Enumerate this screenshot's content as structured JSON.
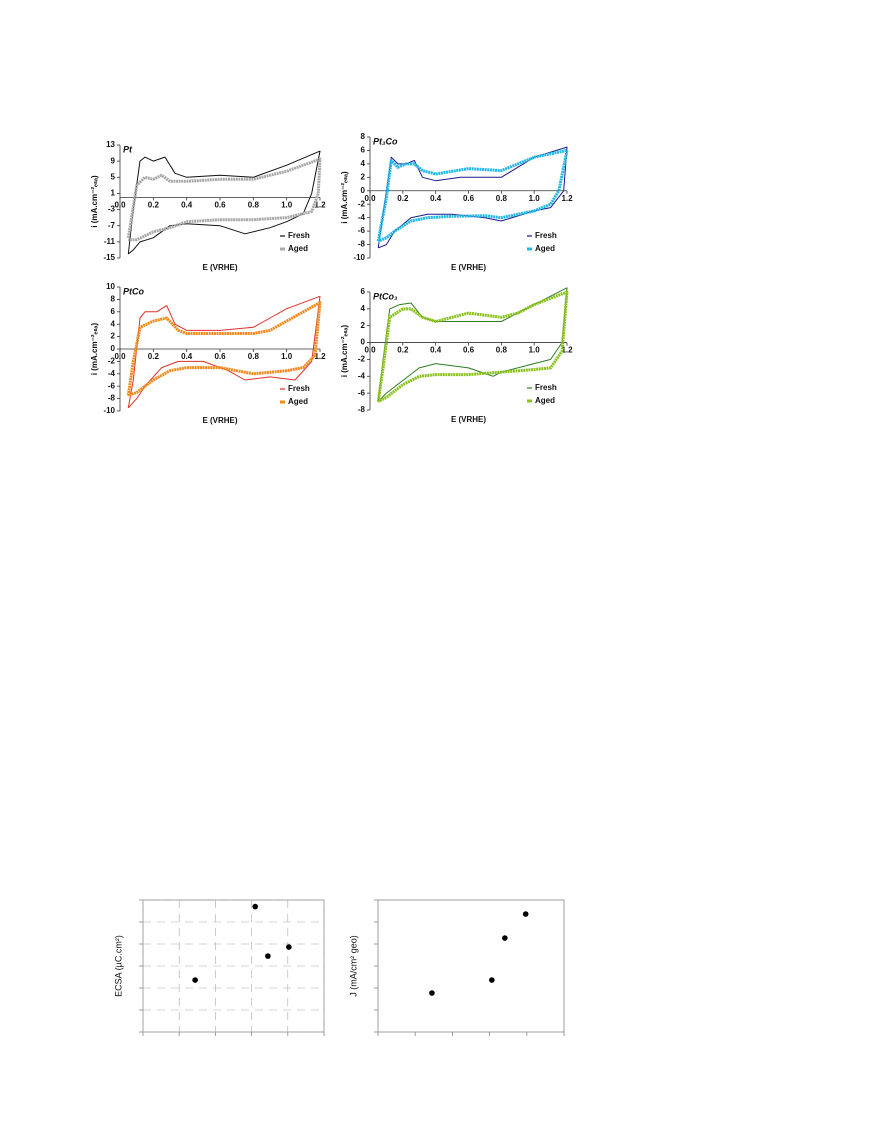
{
  "chart_data": [
    {
      "type": "line",
      "title": "Pt",
      "xlabel": "E (VRHE)",
      "ylabel": "i (mA.cm⁻²ₑₛₐ)",
      "xlim": [
        0,
        1.2
      ],
      "ylim": [
        -15,
        13
      ],
      "xticks": [
        {
          "value": 0,
          "label": "0.0"
        },
        0.2,
        0.4,
        0.6,
        0.8,
        {
          "value": 1,
          "label": "1.0"
        },
        1.2
      ],
      "yticks": [
        13,
        9,
        5,
        1,
        -3,
        -7,
        -11,
        -15
      ],
      "legend": "lower right",
      "series": [
        {
          "name": "Fresh",
          "color": "#111111",
          "x": [
            0.05,
            0.08,
            0.12,
            0.15,
            0.2,
            0.27,
            0.33,
            0.4,
            0.6,
            0.8,
            1.0,
            1.2,
            1.15,
            1.1,
            1.0,
            0.9,
            0.75,
            0.6,
            0.4,
            0.3,
            0.2,
            0.12,
            0.08,
            0.05
          ],
          "values": [
            -14,
            -3,
            9,
            10,
            9,
            10,
            6,
            5,
            5.5,
            5,
            8,
            11.5,
            1,
            -4,
            -6,
            -7.5,
            -9,
            -7,
            -6.5,
            -7,
            -10,
            -11,
            -13,
            -14
          ]
        },
        {
          "name": "Aged",
          "color": "#aaaaaa",
          "x": [
            0.05,
            0.1,
            0.15,
            0.2,
            0.25,
            0.3,
            0.4,
            0.6,
            0.8,
            1.0,
            1.2,
            1.19,
            1.15,
            1.0,
            0.8,
            0.6,
            0.4,
            0.3,
            0.2,
            0.1,
            0.05
          ],
          "values": [
            -10,
            3,
            5,
            4.5,
            5.5,
            4,
            4,
            4.5,
            4.5,
            6.5,
            9.5,
            1,
            -3.5,
            -5,
            -5.5,
            -5.5,
            -6,
            -7.5,
            -8.5,
            -10.5,
            -10.5
          ]
        }
      ]
    },
    {
      "type": "line",
      "title": "Pt₃Co",
      "xlabel": "E (VRHE)",
      "ylabel": "i (mA.cm⁻²ₑₛₐ)",
      "xlim": [
        0,
        1.2
      ],
      "ylim": [
        -10,
        8
      ],
      "xticks": [
        {
          "value": 0,
          "label": "0.0"
        },
        0.2,
        0.4,
        0.6,
        0.8,
        {
          "value": 1,
          "label": "1.0"
        },
        1.2
      ],
      "yticks": [
        8,
        6,
        4,
        2,
        0,
        -2,
        -4,
        -6,
        -8,
        -10
      ],
      "legend": "lower right",
      "series": [
        {
          "name": "Fresh",
          "color": "#1a1a8c",
          "x": [
            0.05,
            0.1,
            0.13,
            0.17,
            0.22,
            0.27,
            0.32,
            0.4,
            0.55,
            0.7,
            0.8,
            0.9,
            1.0,
            1.2,
            1.18,
            1.1,
            1.0,
            0.8,
            0.7,
            0.5,
            0.35,
            0.25,
            0.15,
            0.1,
            0.05
          ],
          "values": [
            -8.5,
            0,
            5,
            4,
            4,
            4.5,
            2,
            1.5,
            2,
            2,
            2,
            3.5,
            5,
            6.5,
            0,
            -2.5,
            -3,
            -4.5,
            -4,
            -3.5,
            -3.5,
            -4,
            -6,
            -8,
            -8.5
          ]
        },
        {
          "name": "Aged",
          "color": "#22b8e8",
          "x": [
            0.05,
            0.1,
            0.13,
            0.17,
            0.22,
            0.27,
            0.32,
            0.4,
            0.6,
            0.8,
            0.9,
            1.0,
            1.2,
            1.15,
            1.1,
            1.0,
            0.8,
            0.7,
            0.5,
            0.35,
            0.25,
            0.15,
            0.1,
            0.05
          ],
          "values": [
            -7.5,
            -1,
            4.5,
            3.5,
            4,
            4,
            3,
            2.5,
            3.3,
            3,
            4,
            5,
            6,
            0,
            -2,
            -3,
            -4,
            -3.7,
            -3.8,
            -4,
            -4.5,
            -6,
            -7,
            -7.5
          ]
        }
      ]
    },
    {
      "type": "line",
      "title": "PtCo",
      "xlabel": "E (VRHE)",
      "ylabel": "i (mA.cm⁻²ₑₛₐ)",
      "xlim": [
        0,
        1.2
      ],
      "ylim": [
        -10,
        10
      ],
      "xticks": [
        {
          "value": 0,
          "label": "0.0"
        },
        0.2,
        0.4,
        0.6,
        0.8,
        {
          "value": 1,
          "label": "1.0"
        },
        1.2
      ],
      "yticks": [
        10,
        8,
        6,
        4,
        2,
        0,
        -2,
        -4,
        -6,
        -8,
        -10
      ],
      "legend": "lower right",
      "series": [
        {
          "name": "Fresh",
          "color": "#e0302a",
          "x": [
            0.05,
            0.08,
            0.12,
            0.15,
            0.22,
            0.28,
            0.33,
            0.4,
            0.6,
            0.8,
            0.9,
            1.0,
            1.2,
            1.15,
            1.05,
            0.9,
            0.75,
            0.65,
            0.5,
            0.35,
            0.25,
            0.15,
            0.1,
            0.05
          ],
          "values": [
            -9.5,
            -5,
            5,
            6,
            6,
            7,
            4,
            3,
            3,
            3.5,
            5,
            6.5,
            8.5,
            -2,
            -5,
            -4.5,
            -5,
            -3.5,
            -2,
            -2,
            -3,
            -6,
            -8,
            -9.5
          ]
        },
        {
          "name": "Aged",
          "color": "#f08a1c",
          "x": [
            0.05,
            0.08,
            0.12,
            0.2,
            0.28,
            0.35,
            0.4,
            0.6,
            0.8,
            0.9,
            1.0,
            1.2,
            1.17,
            1.1,
            1.0,
            0.8,
            0.6,
            0.4,
            0.3,
            0.2,
            0.1,
            0.05
          ],
          "values": [
            -7.5,
            -2,
            3.5,
            4.5,
            5,
            3,
            2.5,
            2.5,
            2.5,
            3,
            4.5,
            7.5,
            -1,
            -3,
            -3.5,
            -4,
            -3,
            -3,
            -3.5,
            -5,
            -7,
            -7.5
          ]
        }
      ]
    },
    {
      "type": "line",
      "title": "PtCo₃",
      "xlabel": "E (VRHE)",
      "ylabel": "i (mA.cm⁻²ₑₛₐ)",
      "xlim": [
        0,
        1.2
      ],
      "ylim": [
        -8,
        6
      ],
      "xticks": [
        {
          "value": 0,
          "label": "0.0"
        },
        0.2,
        0.4,
        0.6,
        0.8,
        {
          "value": 1,
          "label": "1.0"
        },
        1.2
      ],
      "yticks": [
        6,
        4,
        2,
        0,
        -2,
        -4,
        -6,
        -8
      ],
      "legend": "lower right",
      "series": [
        {
          "name": "Fresh",
          "color": "#2e7d20",
          "x": [
            0.05,
            0.08,
            0.12,
            0.18,
            0.25,
            0.32,
            0.4,
            0.6,
            0.8,
            0.9,
            1.0,
            1.2,
            1.17,
            1.1,
            1.0,
            0.8,
            0.75,
            0.6,
            0.4,
            0.3,
            0.2,
            0.1,
            0.05
          ],
          "values": [
            -7,
            -2,
            4,
            4.5,
            4.7,
            3,
            2.5,
            2.5,
            2.5,
            3.5,
            4.5,
            6.5,
            0,
            -2,
            -2.5,
            -3.5,
            -4,
            -3,
            -2.5,
            -3,
            -4.5,
            -6,
            -7
          ]
        },
        {
          "name": "Aged",
          "color": "#8cc21e",
          "x": [
            0.05,
            0.08,
            0.12,
            0.2,
            0.25,
            0.32,
            0.4,
            0.6,
            0.8,
            0.9,
            1.0,
            1.2,
            1.17,
            1.1,
            1.0,
            0.8,
            0.6,
            0.4,
            0.3,
            0.2,
            0.1,
            0.05
          ],
          "values": [
            -7,
            -3,
            3,
            4,
            4,
            3,
            2.5,
            3.5,
            3,
            3.5,
            4.5,
            6,
            -1,
            -3,
            -3.2,
            -3.5,
            -3.8,
            -3.8,
            -4,
            -5,
            -6.5,
            -7
          ]
        }
      ]
    },
    {
      "type": "scatter",
      "ylabel": "ECSA (µC.cm²)",
      "xlim": [
        0,
        5
      ],
      "ylim": [
        0,
        6
      ],
      "xticks": [
        0,
        1,
        2,
        3,
        4,
        5
      ],
      "yticks": [
        0,
        1,
        2,
        3,
        4,
        5,
        6
      ],
      "tick_labels": false,
      "grid": true,
      "color": "#000000",
      "x": [
        3.1,
        3.45,
        4.03,
        1.44
      ],
      "values": [
        5.7,
        3.45,
        3.86,
        2.36
      ]
    },
    {
      "type": "scatter",
      "ylabel": "J (mA/cm² geo)",
      "xlim": [
        0,
        5
      ],
      "ylim": [
        0,
        6
      ],
      "xticks": [
        0,
        1,
        2,
        3,
        4,
        5
      ],
      "yticks": [
        0,
        1,
        2,
        3,
        4,
        5,
        6
      ],
      "tick_labels": false,
      "grid": false,
      "color": "#000000",
      "x": [
        1.45,
        3.06,
        3.41,
        3.97
      ],
      "values": [
        1.77,
        2.36,
        4.27,
        5.36
      ]
    }
  ]
}
